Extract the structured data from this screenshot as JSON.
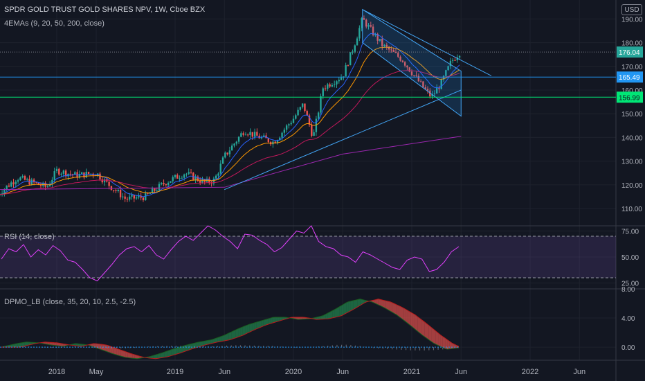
{
  "header": {
    "title": "SPDR GOLD TRUST GOLD SHARES NPV, 1W, Cboe BZX",
    "ema_label": "4EMAs (9, 20, 50, 200, close)",
    "currency_badge": "USD"
  },
  "colors": {
    "background": "#131722",
    "grid": "#1e222d",
    "candle_up": "#26a69a",
    "candle_down": "#ef5350",
    "ema9": "#2962ff",
    "ema20": "#f7525f",
    "ema50": "#c2185b",
    "ema200": "#9c27b0",
    "hline_blue": "#2196f3",
    "hline_green": "#00e676",
    "channel": "#42a5f5",
    "rsi": "#e040fb"
  },
  "price_labels": {
    "last": "176.04",
    "blue_line": "165.49",
    "green_line": "156.99"
  },
  "chart_data": [
    {
      "type": "candlestick",
      "title": "SPDR GOLD TRUST GOLD SHARES NPV, 1W, Cboe BZX",
      "y_ticks": [
        "110.00",
        "120.00",
        "130.00",
        "140.00",
        "150.00",
        "160.00",
        "170.00",
        "180.00",
        "190.00"
      ],
      "ylim": [
        103,
        198
      ],
      "x_ticks": [
        "2018",
        "May",
        "2019",
        "Jun",
        "2020",
        "Jun",
        "2021",
        "Jun",
        "2022",
        "Jun"
      ],
      "x_tick_dates": [
        "2018-01",
        "2018-05",
        "2019-01",
        "2019-06",
        "2020-01",
        "2020-06",
        "2021-01",
        "2021-06",
        "2022-01",
        "2022-06"
      ],
      "series_points": [
        [
          "2017-07",
          116
        ],
        [
          "2017-09",
          123
        ],
        [
          "2017-12",
          119
        ],
        [
          "2018-01",
          126
        ],
        [
          "2018-03",
          124
        ],
        [
          "2018-05",
          125
        ],
        [
          "2018-06",
          121
        ],
        [
          "2018-08",
          114
        ],
        [
          "2018-10",
          115
        ],
        [
          "2018-12",
          121
        ],
        [
          "2019-02",
          125
        ],
        [
          "2019-04",
          121
        ],
        [
          "2019-05",
          122
        ],
        [
          "2019-06",
          132
        ],
        [
          "2019-08",
          143
        ],
        [
          "2019-09",
          141
        ],
        [
          "2019-11",
          138
        ],
        [
          "2020-01",
          148
        ],
        [
          "2020-02",
          154
        ],
        [
          "2020-03",
          140
        ],
        [
          "2020-04",
          161
        ],
        [
          "2020-06",
          166
        ],
        [
          "2020-07",
          177
        ],
        [
          "2020-08",
          190
        ],
        [
          "2020-10",
          179
        ],
        [
          "2020-12",
          173
        ],
        [
          "2021-02",
          162
        ],
        [
          "2021-03",
          157
        ],
        [
          "2021-04",
          163
        ],
        [
          "2021-05",
          172
        ],
        [
          "2021-05-28",
          176
        ]
      ],
      "horizontal_lines": [
        165.49,
        156.99,
        176.04
      ],
      "channel": {
        "upper": [
          [
            "2020-08",
            194
          ],
          [
            "2021-06",
            168
          ]
        ],
        "lower": [
          [
            "2020-08",
            180
          ],
          [
            "2021-06",
            149
          ]
        ]
      },
      "trendline": [
        [
          "2019-06",
          118
        ],
        [
          "2021-06",
          160
        ]
      ],
      "ema200": [
        [
          "2017-07",
          118
        ],
        [
          "2019-06",
          119
        ],
        [
          "2020-06",
          133
        ],
        [
          "2021-06",
          140.5
        ]
      ]
    },
    {
      "type": "line",
      "title": "RSI (14, close)",
      "y_ticks": [
        "75.00",
        "50.00",
        "25.00"
      ],
      "ylim": [
        20,
        80
      ],
      "bands": [
        70,
        30
      ],
      "values": [
        48,
        58,
        55,
        62,
        50,
        57,
        52,
        61,
        56,
        47,
        45,
        38,
        30,
        27,
        35,
        43,
        52,
        58,
        60,
        55,
        61,
        52,
        48,
        57,
        65,
        70,
        66,
        73,
        80,
        76,
        70,
        65,
        58,
        72,
        71,
        66,
        62,
        55,
        59,
        67,
        75,
        73,
        80,
        65,
        60,
        58,
        52,
        50,
        45,
        55,
        52,
        48,
        44,
        40,
        38,
        47,
        50,
        48,
        36,
        38,
        45,
        55,
        60
      ]
    },
    {
      "type": "histogram",
      "title": "DPMO_LB (close, 35, 20, 10, 2.5, -2.5)",
      "y_ticks": [
        "8.00",
        "4.00",
        "0.00"
      ],
      "ylim": [
        -1.8,
        8
      ],
      "values": [
        0,
        0.4,
        0.7,
        0.6,
        0.3,
        0.1,
        0.5,
        0.3,
        -0.3,
        -0.9,
        -1.4,
        -1.6,
        -1.3,
        -0.8,
        -0.2,
        0.3,
        0.7,
        1.0,
        1.6,
        2.4,
        3.1,
        3.6,
        4.1,
        4.1,
        3.8,
        3.9,
        4.3,
        5.2,
        6.2,
        6.6,
        6.2,
        5.4,
        4.4,
        3.1,
        1.7,
        0.5,
        -0.3,
        -0.1
      ]
    }
  ]
}
